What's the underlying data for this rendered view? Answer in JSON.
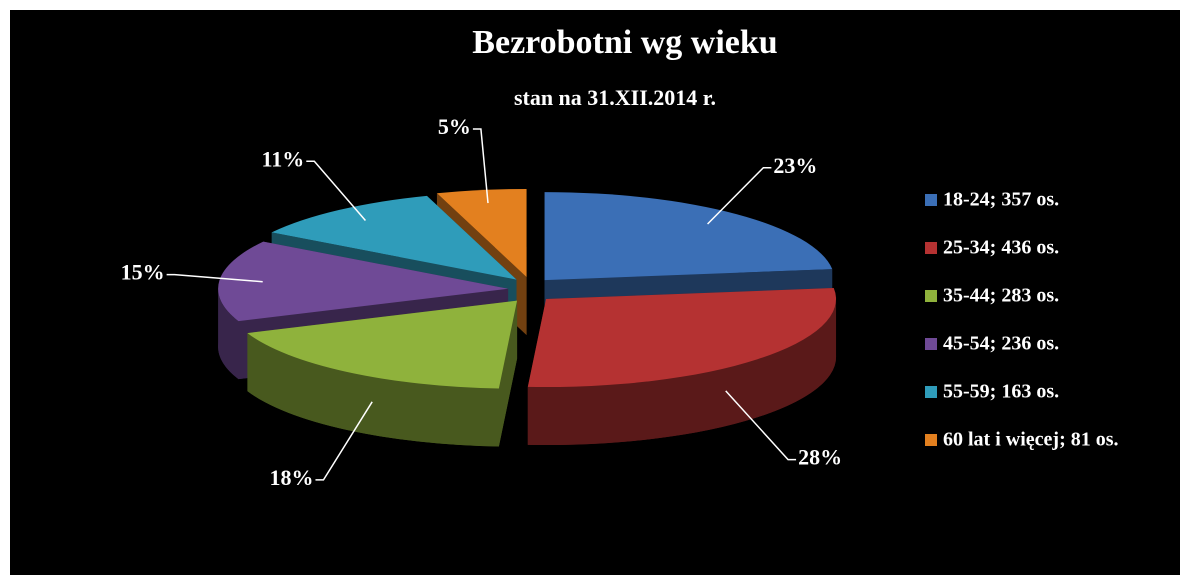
{
  "chart_data": {
    "type": "pie",
    "title": "Bezrobotni wg wieku",
    "subtitle": "stan na 31.XII.2014 r.",
    "categories": [
      "18-24; 357 os.",
      "25-34; 436 os.",
      "35-44; 283 os.",
      "45-54; 236 os.",
      "55-59; 163 os.",
      "60 lat i więcej; 81 os."
    ],
    "values": [
      23,
      28,
      18,
      15,
      11,
      5
    ],
    "value_labels": [
      "23%",
      "28%",
      "18%",
      "15%",
      "11%",
      "5%"
    ],
    "colors": [
      "#3b6fb6",
      "#b53232",
      "#8fb23c",
      "#6f4a96",
      "#2f9cba",
      "#e3801f"
    ],
    "legend": "right"
  }
}
